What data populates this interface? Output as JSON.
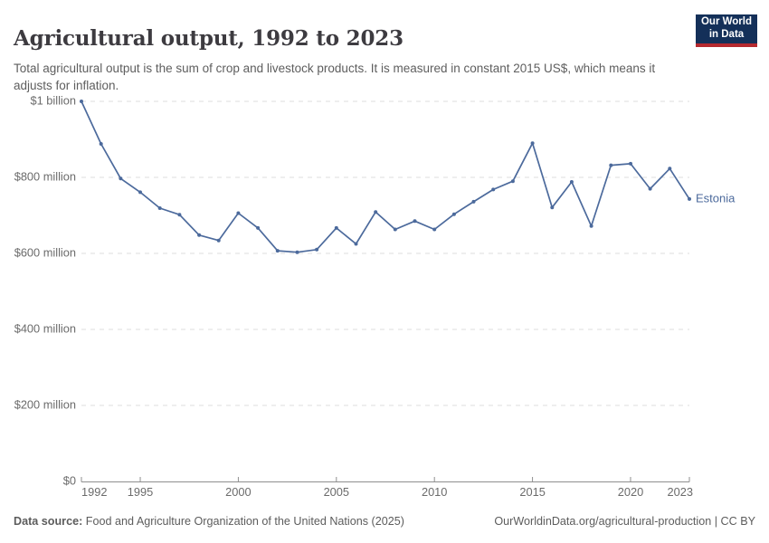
{
  "header": {
    "title": "Agricultural output, 1992 to 2023",
    "subtitle": "Total agricultural output is the sum of crop and livestock products. It is measured in constant 2015 US$, which means it adjusts for inflation.",
    "logo": {
      "line1": "Our World",
      "line2": "in Data",
      "bg_color": "#143059",
      "bar_color": "#b5292f"
    }
  },
  "chart_data": {
    "type": "line",
    "title": "Agricultural output, 1992 to 2023",
    "unit": "constant 2015 US$, millions",
    "xlim": [
      1992,
      2023
    ],
    "ylim": [
      0,
      1000
    ],
    "grid": "dashed-horizontal",
    "legend_position": "end-of-line-label",
    "x_ticks": [
      1992,
      1995,
      2000,
      2005,
      2010,
      2015,
      2020,
      2023
    ],
    "y_ticks": [
      {
        "value": 0,
        "label": "$0"
      },
      {
        "value": 200,
        "label": "$200 million"
      },
      {
        "value": 400,
        "label": "$400 million"
      },
      {
        "value": 600,
        "label": "$600 million"
      },
      {
        "value": 800,
        "label": "$800 million"
      },
      {
        "value": 1000,
        "label": "$1 billion"
      }
    ],
    "series": [
      {
        "name": "Estonia",
        "color": "#4C6A9C",
        "x": [
          1992,
          1993,
          1994,
          1995,
          1996,
          1997,
          1998,
          1999,
          2000,
          2001,
          2002,
          2003,
          2004,
          2005,
          2006,
          2007,
          2008,
          2009,
          2010,
          2011,
          2012,
          2013,
          2014,
          2015,
          2016,
          2017,
          2018,
          2019,
          2020,
          2021,
          2022,
          2023
        ],
        "values": [
          1000,
          888,
          797,
          761,
          719,
          702,
          648,
          634,
          706,
          667,
          607,
          603,
          610,
          667,
          625,
          709,
          663,
          685,
          663,
          703,
          736,
          768,
          790,
          890,
          721,
          788,
          672,
          832,
          836,
          770,
          823,
          743
        ]
      }
    ],
    "colors": {
      "grid": "#dcdcdc",
      "axis": "#8f8f8f",
      "axis_text": "#6b6b6b"
    }
  },
  "footer": {
    "source_label": "Data source:",
    "source_text": " Food and Agriculture Organization of the United Nations (2025)",
    "right_text": "OurWorldinData.org/agricultural-production | CC BY"
  }
}
